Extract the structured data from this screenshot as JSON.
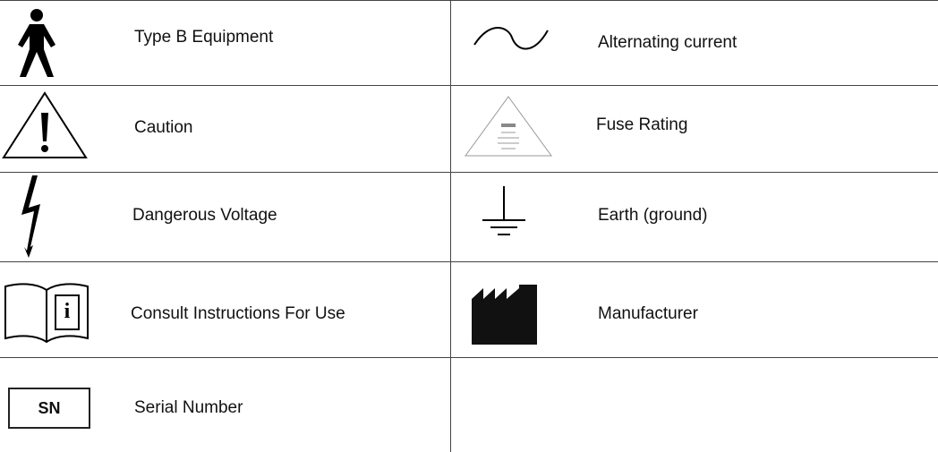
{
  "rows": [
    [
      "Type B Equipment",
      "Alternating current"
    ],
    [
      "Caution",
      "Fuse Rating"
    ],
    [
      "Dangerous Voltage",
      "Earth (ground)"
    ],
    [
      "Consult Instructions For Use",
      "Manufacturer"
    ],
    [
      "Serial Number"
    ]
  ],
  "serial_icon": "SN"
}
